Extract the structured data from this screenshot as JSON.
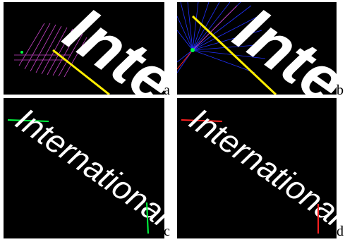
{
  "figure": {
    "panels": [
      {
        "label": "a",
        "word": "Inte"
      },
      {
        "label": "b",
        "word": "Inte"
      },
      {
        "label": "c",
        "word": "International"
      },
      {
        "label": "d",
        "word": "International"
      }
    ]
  },
  "colors": {
    "background": "#000000",
    "text": "#ffffff",
    "baseline": "#ffee00",
    "grid_magenta": "#c040c0",
    "ray_blue": "#2030ff",
    "marker_green": "#00ff40",
    "marker_red": "#ff2020"
  }
}
